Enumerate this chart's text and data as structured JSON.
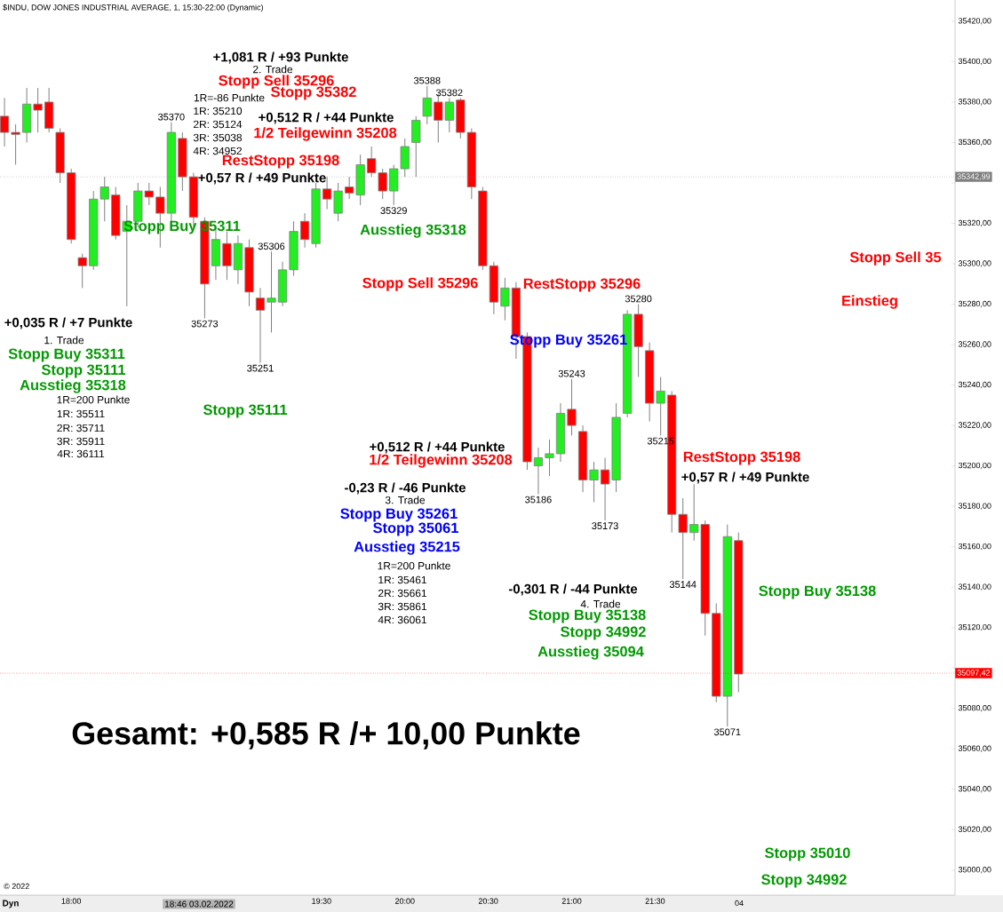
{
  "chart_data": {
    "type": "candlestick",
    "title": "$INDU, DOW JONES INDUSTRIAL AVERAGE, 1, 15:30-22:00 (Dynamic)",
    "x": [
      17.6,
      17.6667,
      17.7333,
      17.8,
      17.8667,
      17.9333,
      18.0,
      18.0667,
      18.1333,
      18.2,
      18.2667,
      18.3333,
      18.4,
      18.4667,
      18.5333,
      18.6,
      18.6667,
      18.7333,
      18.8,
      18.8667,
      18.9333,
      19.0,
      19.0667,
      19.1333,
      19.2,
      19.2667,
      19.3333,
      19.4,
      19.4667,
      19.5333,
      19.6,
      19.6667,
      19.7333,
      19.8,
      19.8667,
      19.9333,
      20.0,
      20.0667,
      20.1333,
      20.2,
      20.2667,
      20.3333,
      20.4,
      20.4667,
      20.5333,
      20.6,
      20.6667,
      20.7333,
      20.8,
      20.8667,
      20.9333,
      21.0,
      21.0667,
      21.1333,
      21.2,
      21.2667,
      21.3333,
      21.4,
      21.4667,
      21.5333,
      21.6,
      21.6667,
      21.7333,
      21.8,
      21.8667,
      21.9333,
      22.0
    ],
    "ohlc": [
      [
        35373,
        35382,
        35358,
        35365
      ],
      [
        35365,
        35369,
        35349,
        35364
      ],
      [
        35365,
        35387,
        35360,
        35379
      ],
      [
        35379,
        35387,
        35365,
        35376
      ],
      [
        35380,
        35387,
        35365,
        35367
      ],
      [
        35365,
        35367,
        35340,
        35345
      ],
      [
        35345,
        35347,
        35310,
        35312
      ],
      [
        35303,
        35305,
        35288,
        35299
      ],
      [
        35299,
        35336,
        35297,
        35332
      ],
      [
        35332,
        35343,
        35321,
        35338
      ],
      [
        35334,
        35338,
        35312,
        35314
      ],
      [
        35316,
        35329,
        35279,
        35321
      ],
      [
        35321,
        35340,
        35318,
        35336
      ],
      [
        35336,
        35340,
        35329,
        35333
      ],
      [
        35333,
        35338,
        35308,
        35325
      ],
      [
        35325,
        35370,
        35321,
        35365
      ],
      [
        35362,
        35365,
        35336,
        35343
      ],
      [
        35343,
        35345,
        35318,
        35323
      ],
      [
        35321,
        35323,
        35273,
        35290
      ],
      [
        35299,
        35318,
        35292,
        35312
      ],
      [
        35310,
        35316,
        35292,
        35299
      ],
      [
        35297,
        35314,
        35290,
        35310
      ],
      [
        35308,
        35312,
        35279,
        35286
      ],
      [
        35283,
        35288,
        35251,
        35277
      ],
      [
        35281,
        35306,
        35266,
        35283
      ],
      [
        35281,
        35301,
        35279,
        35297
      ],
      [
        35297,
        35321,
        35294,
        35316
      ],
      [
        35321,
        35325,
        35308,
        35312
      ],
      [
        35310,
        35340,
        35308,
        35337
      ],
      [
        35337,
        35343,
        35327,
        35332
      ],
      [
        35325,
        35340,
        35321,
        35336
      ],
      [
        35338,
        35343,
        35332,
        35335
      ],
      [
        35334,
        35354,
        35329,
        35349
      ],
      [
        35352,
        35358,
        35343,
        35345
      ],
      [
        35345,
        35347,
        35332,
        35336
      ],
      [
        35336,
        35349,
        35329,
        35347
      ],
      [
        35347,
        35362,
        35343,
        35358
      ],
      [
        35360,
        35373,
        35343,
        35371
      ],
      [
        35373,
        35388,
        35369,
        35382
      ],
      [
        35380,
        35384,
        35360,
        35371
      ],
      [
        35371,
        35382,
        35365,
        35380
      ],
      [
        35381,
        35382,
        35362,
        35365
      ],
      [
        35365,
        35367,
        35332,
        35338
      ],
      [
        35336,
        35338,
        35297,
        35299
      ],
      [
        35299,
        35301,
        35275,
        35281
      ],
      [
        35279,
        35293,
        35272,
        35288
      ],
      [
        35288,
        35291,
        35253,
        35264
      ],
      [
        35264,
        35266,
        35198,
        35202
      ],
      [
        35200,
        35209,
        35186,
        35204
      ],
      [
        35204,
        35213,
        35195,
        35206
      ],
      [
        35206,
        35231,
        35202,
        35226
      ],
      [
        35228,
        35243,
        35215,
        35220
      ],
      [
        35217,
        35220,
        35187,
        35193
      ],
      [
        35193,
        35202,
        35182,
        35198
      ],
      [
        35198,
        35204,
        35173,
        35191
      ],
      [
        35193,
        35231,
        35187,
        35224
      ],
      [
        35226,
        35277,
        35224,
        35275
      ],
      [
        35275,
        35280,
        35244,
        35259
      ],
      [
        35257,
        35261,
        35222,
        35231
      ],
      [
        35231,
        35244,
        35215,
        35237
      ],
      [
        35235,
        35237,
        35167,
        35176
      ],
      [
        35176,
        35184,
        35144,
        35167
      ],
      [
        35167,
        35191,
        35163,
        35171
      ],
      [
        35171,
        35173,
        35116,
        35127
      ],
      [
        35127,
        35132,
        35083,
        35086
      ],
      [
        35086,
        35171,
        35071,
        35165
      ],
      [
        35163,
        35167,
        35088,
        35097
      ]
    ],
    "xlim": [
      17.573,
      23.298
    ],
    "ylim": [
      34987.6,
      35430.5
    ],
    "xticks": [
      {
        "value": 18.0,
        "label": "18:00"
      },
      {
        "value": 19.5,
        "label": "19:30"
      },
      {
        "value": 20.0,
        "label": "20:00"
      },
      {
        "value": 20.5,
        "label": "20:30"
      },
      {
        "value": 21.0,
        "label": "21:00"
      },
      {
        "value": 21.5,
        "label": "21:30"
      }
    ],
    "yticks": [
      {
        "value": 35000,
        "label": "35000,00"
      },
      {
        "value": 35020,
        "label": "35020,00"
      },
      {
        "value": 35040,
        "label": "35040,00"
      },
      {
        "value": 35060,
        "label": "35060,00"
      },
      {
        "value": 35080,
        "label": "35080,00"
      },
      {
        "value": 35100,
        "label": null
      },
      {
        "value": 35120,
        "label": "35120,00"
      },
      {
        "value": 35140,
        "label": "35140,00"
      },
      {
        "value": 35160,
        "label": "35160,00"
      },
      {
        "value": 35180,
        "label": "35180,00"
      },
      {
        "value": 35200,
        "label": "35200,00"
      },
      {
        "value": 35220,
        "label": "35220,00"
      },
      {
        "value": 35240,
        "label": "35240,00"
      },
      {
        "value": 35260,
        "label": "35260,00"
      },
      {
        "value": 35280,
        "label": "35280,00"
      },
      {
        "value": 35300,
        "label": "35300,00"
      },
      {
        "value": 35320,
        "label": "35320,00"
      },
      {
        "value": 35340,
        "label": null
      },
      {
        "value": 35360,
        "label": "35360,00"
      },
      {
        "value": 35380,
        "label": "35380,00"
      },
      {
        "value": 35400,
        "label": "35400,00"
      },
      {
        "value": 35420,
        "label": "35420,00"
      }
    ],
    "ref_lines": [
      {
        "axis": "y",
        "value": 35342.99,
        "label": "35342,99",
        "color": "#808080"
      },
      {
        "axis": "y",
        "value": 35097.42,
        "label": "35097,42",
        "color": "#ff0000"
      }
    ],
    "annotations": [
      "+1,081 R / +93 Punkte",
      "2. Trade",
      "Stopp Sell 35296",
      "Stopp 35382",
      "1R=-86 Punkte",
      "1R: 35210",
      "2R: 35124",
      "3R: 35038",
      "4R: 34952",
      "+0,512 R / +44 Punkte",
      "1/2 Teilgewinn 35208",
      "RestStopp 35198",
      "+0,57 R / +49 Punkte",
      "Stopp Buy 35311",
      "Ausstieg 35318",
      "Stopp Sell 35296",
      "RestStopp 35296",
      "Stopp Buy 35261",
      "+0,035 R / +7 Punkte",
      "1. Trade",
      "Stopp Buy 35311",
      "Stopp 35111",
      "Ausstieg 35318",
      "1R=200 Punkte",
      "1R: 35511",
      "2R: 35711",
      "3R: 35911",
      "4R: 36111",
      "Stopp 35111",
      "+0,512 R / +44 Punkte",
      "1/2 Teilgewinn 35208",
      "-0,23 R / -46 Punkte",
      "3. Trade",
      "Stopp Buy 35261",
      "Stopp 35061",
      "Ausstieg 35215",
      "1R=200 Punkte",
      "1R: 35461",
      "2R: 35661",
      "3R: 35861",
      "4R: 36061",
      "-0,301 R / -44 Punkte",
      "4. Trade",
      "Stopp Buy 35138",
      "Stopp 34992",
      "Ausstieg 35094",
      "Stopp Buy 35138",
      "RestStopp 35198",
      "+0,57 R / +49 Punkte",
      "Stopp Sell 35",
      "Einstieg",
      "Stopp 35010",
      "Stopp 34992",
      "Gesamt: +0,585 R /+ 10,00 Punkte",
      "© 2022",
      "Dyn",
      "18:46 03.02.2022",
      "04",
      {
        "text": "35370",
        "x": 18.6,
        "y": 35370
      },
      {
        "text": "35388",
        "x": 20.1333,
        "y": 35388
      },
      {
        "text": "35382",
        "x": 20.2667,
        "y": 35382
      },
      {
        "text": "35329",
        "x": 19.9333,
        "y": 35329
      },
      {
        "text": "35306",
        "x": 19.2,
        "y": 35306
      },
      {
        "text": "35273",
        "x": 18.8,
        "y": 35273
      },
      {
        "text": "35251",
        "x": 19.1333,
        "y": 35251
      },
      {
        "text": "35280",
        "x": 21.4,
        "y": 35280
      },
      {
        "text": "35243",
        "x": 21.0,
        "y": 35243
      },
      {
        "text": "35215",
        "x": 21.5333,
        "y": 35215
      },
      {
        "text": "35186",
        "x": 20.8,
        "y": 35186
      },
      {
        "text": "35173",
        "x": 21.2,
        "y": 35173
      },
      {
        "text": "35144",
        "x": 21.6667,
        "y": 35144
      },
      {
        "text": "35071",
        "x": 21.9333,
        "y": 35071
      }
    ]
  }
}
